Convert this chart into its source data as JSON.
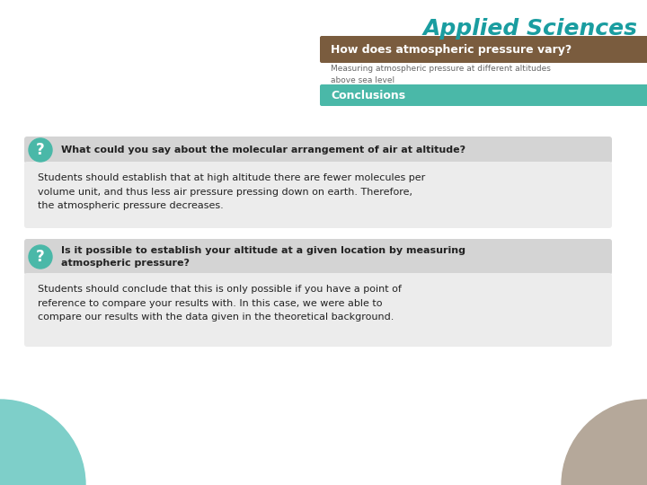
{
  "bg_color": "#ffffff",
  "title_brand": "Applied Sciences",
  "title_brand_color": "#1a9da0",
  "header_bg": "#7a5c3e",
  "header_text": "How does atmospheric pressure vary?",
  "header_text_color": "#ffffff",
  "subtitle_text": "Measuring atmospheric pressure at different altitudes\nabove sea level",
  "subtitle_color": "#666666",
  "conclusions_bg": "#4ab8a8",
  "conclusions_text": "Conclusions",
  "conclusions_text_color": "#ffffff",
  "q1_text": "What could you say about the molecular arrangement of air at altitude?",
  "a1_text": "Students should establish that at high altitude there are fewer molecules per\nvolume unit, and thus less air pressure pressing down on earth. Therefore,\nthe atmospheric pressure decreases.",
  "q2_text": "Is it possible to establish your altitude at a given location by measuring\natmospheric pressure?",
  "a2_text": "Students should conclude that this is only possible if you have a point of\nreference to compare your results with. In this case, we were able to\ncompare our results with the data given in the theoretical background.",
  "question_box_bg": "#d4d4d4",
  "answer_box_bg": "#ececec",
  "question_icon_bg": "#4ab8a8",
  "question_icon_color": "#ffffff",
  "circle_teal_color": "#7ecfc9",
  "circle_brown_color": "#b5a89a",
  "text_dark": "#222222"
}
